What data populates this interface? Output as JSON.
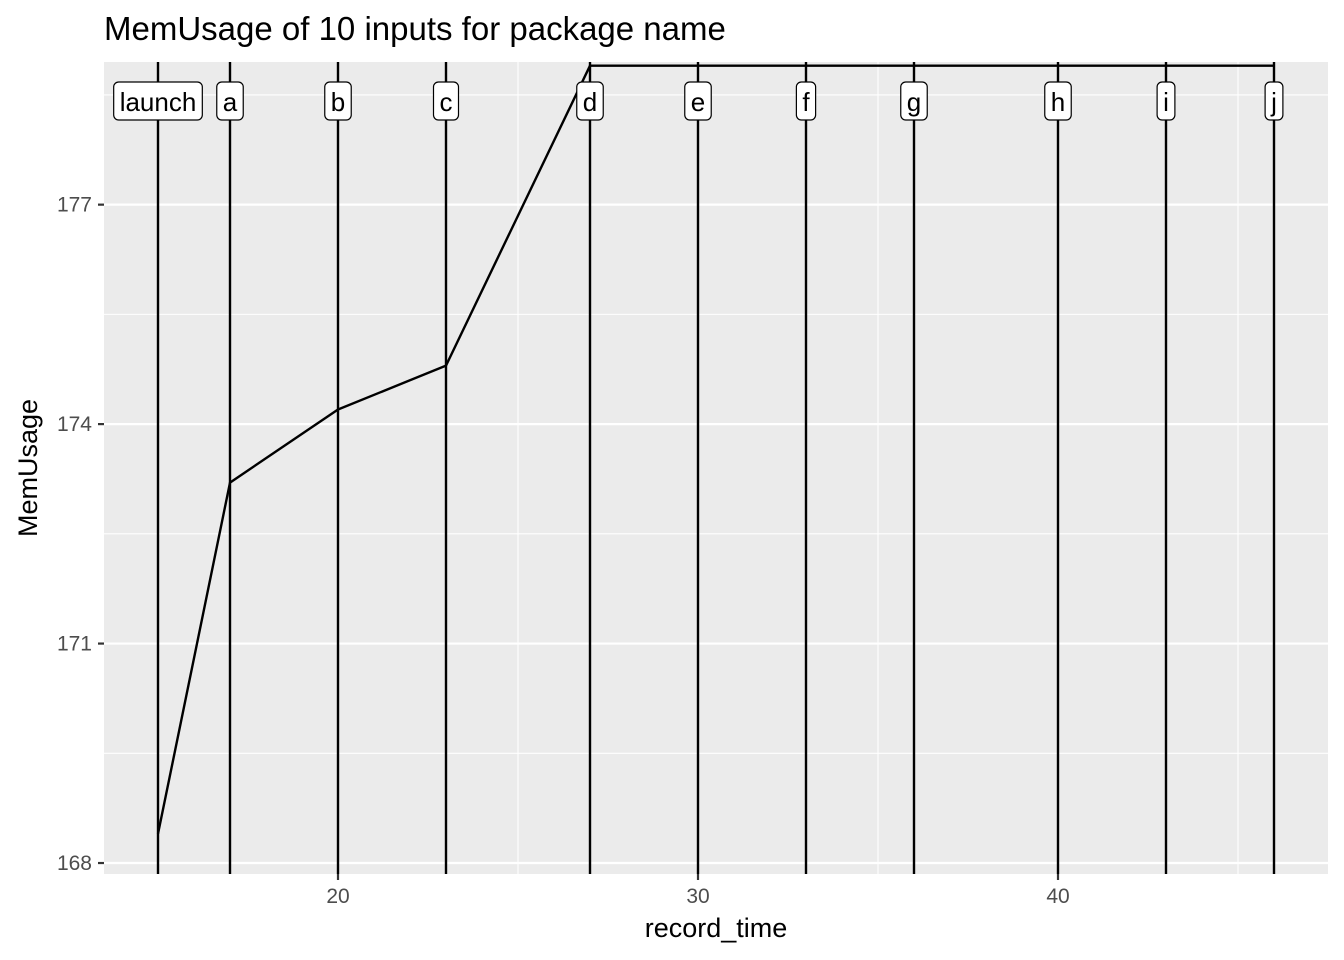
{
  "chart_data": {
    "type": "line",
    "title": "MemUsage of 10 inputs for package name",
    "xlabel": "record_time",
    "ylabel": "MemUsage",
    "xlim": [
      13.5,
      47.5
    ],
    "ylim": [
      167.85,
      178.95
    ],
    "x_ticks": [
      20,
      30,
      40
    ],
    "x_tick_labels": [
      "20",
      "30",
      "40"
    ],
    "y_ticks": [
      168,
      171,
      174,
      177
    ],
    "y_tick_labels": [
      "168",
      "171",
      "174",
      "177"
    ],
    "grid": true,
    "legend": "none",
    "series": [
      {
        "x": [
          15,
          17,
          20,
          23,
          27,
          30,
          33,
          36,
          40,
          43,
          46
        ],
        "y": [
          168.4,
          173.2,
          174.2,
          174.8,
          178.9,
          178.9,
          178.9,
          178.9,
          178.9,
          178.9,
          178.9
        ]
      }
    ],
    "markers": [
      {
        "x": 15,
        "label": "launch"
      },
      {
        "x": 17,
        "label": "a"
      },
      {
        "x": 20,
        "label": "b"
      },
      {
        "x": 23,
        "label": "c"
      },
      {
        "x": 27,
        "label": "d"
      },
      {
        "x": 30,
        "label": "e"
      },
      {
        "x": 33,
        "label": "f"
      },
      {
        "x": 36,
        "label": "g"
      },
      {
        "x": 40,
        "label": "h"
      },
      {
        "x": 43,
        "label": "i"
      },
      {
        "x": 46,
        "label": "j"
      }
    ],
    "colors": {
      "panel": "#ebebeb",
      "grid_major": "#ffffff",
      "line": "#000000",
      "tick": "#333333"
    }
  }
}
